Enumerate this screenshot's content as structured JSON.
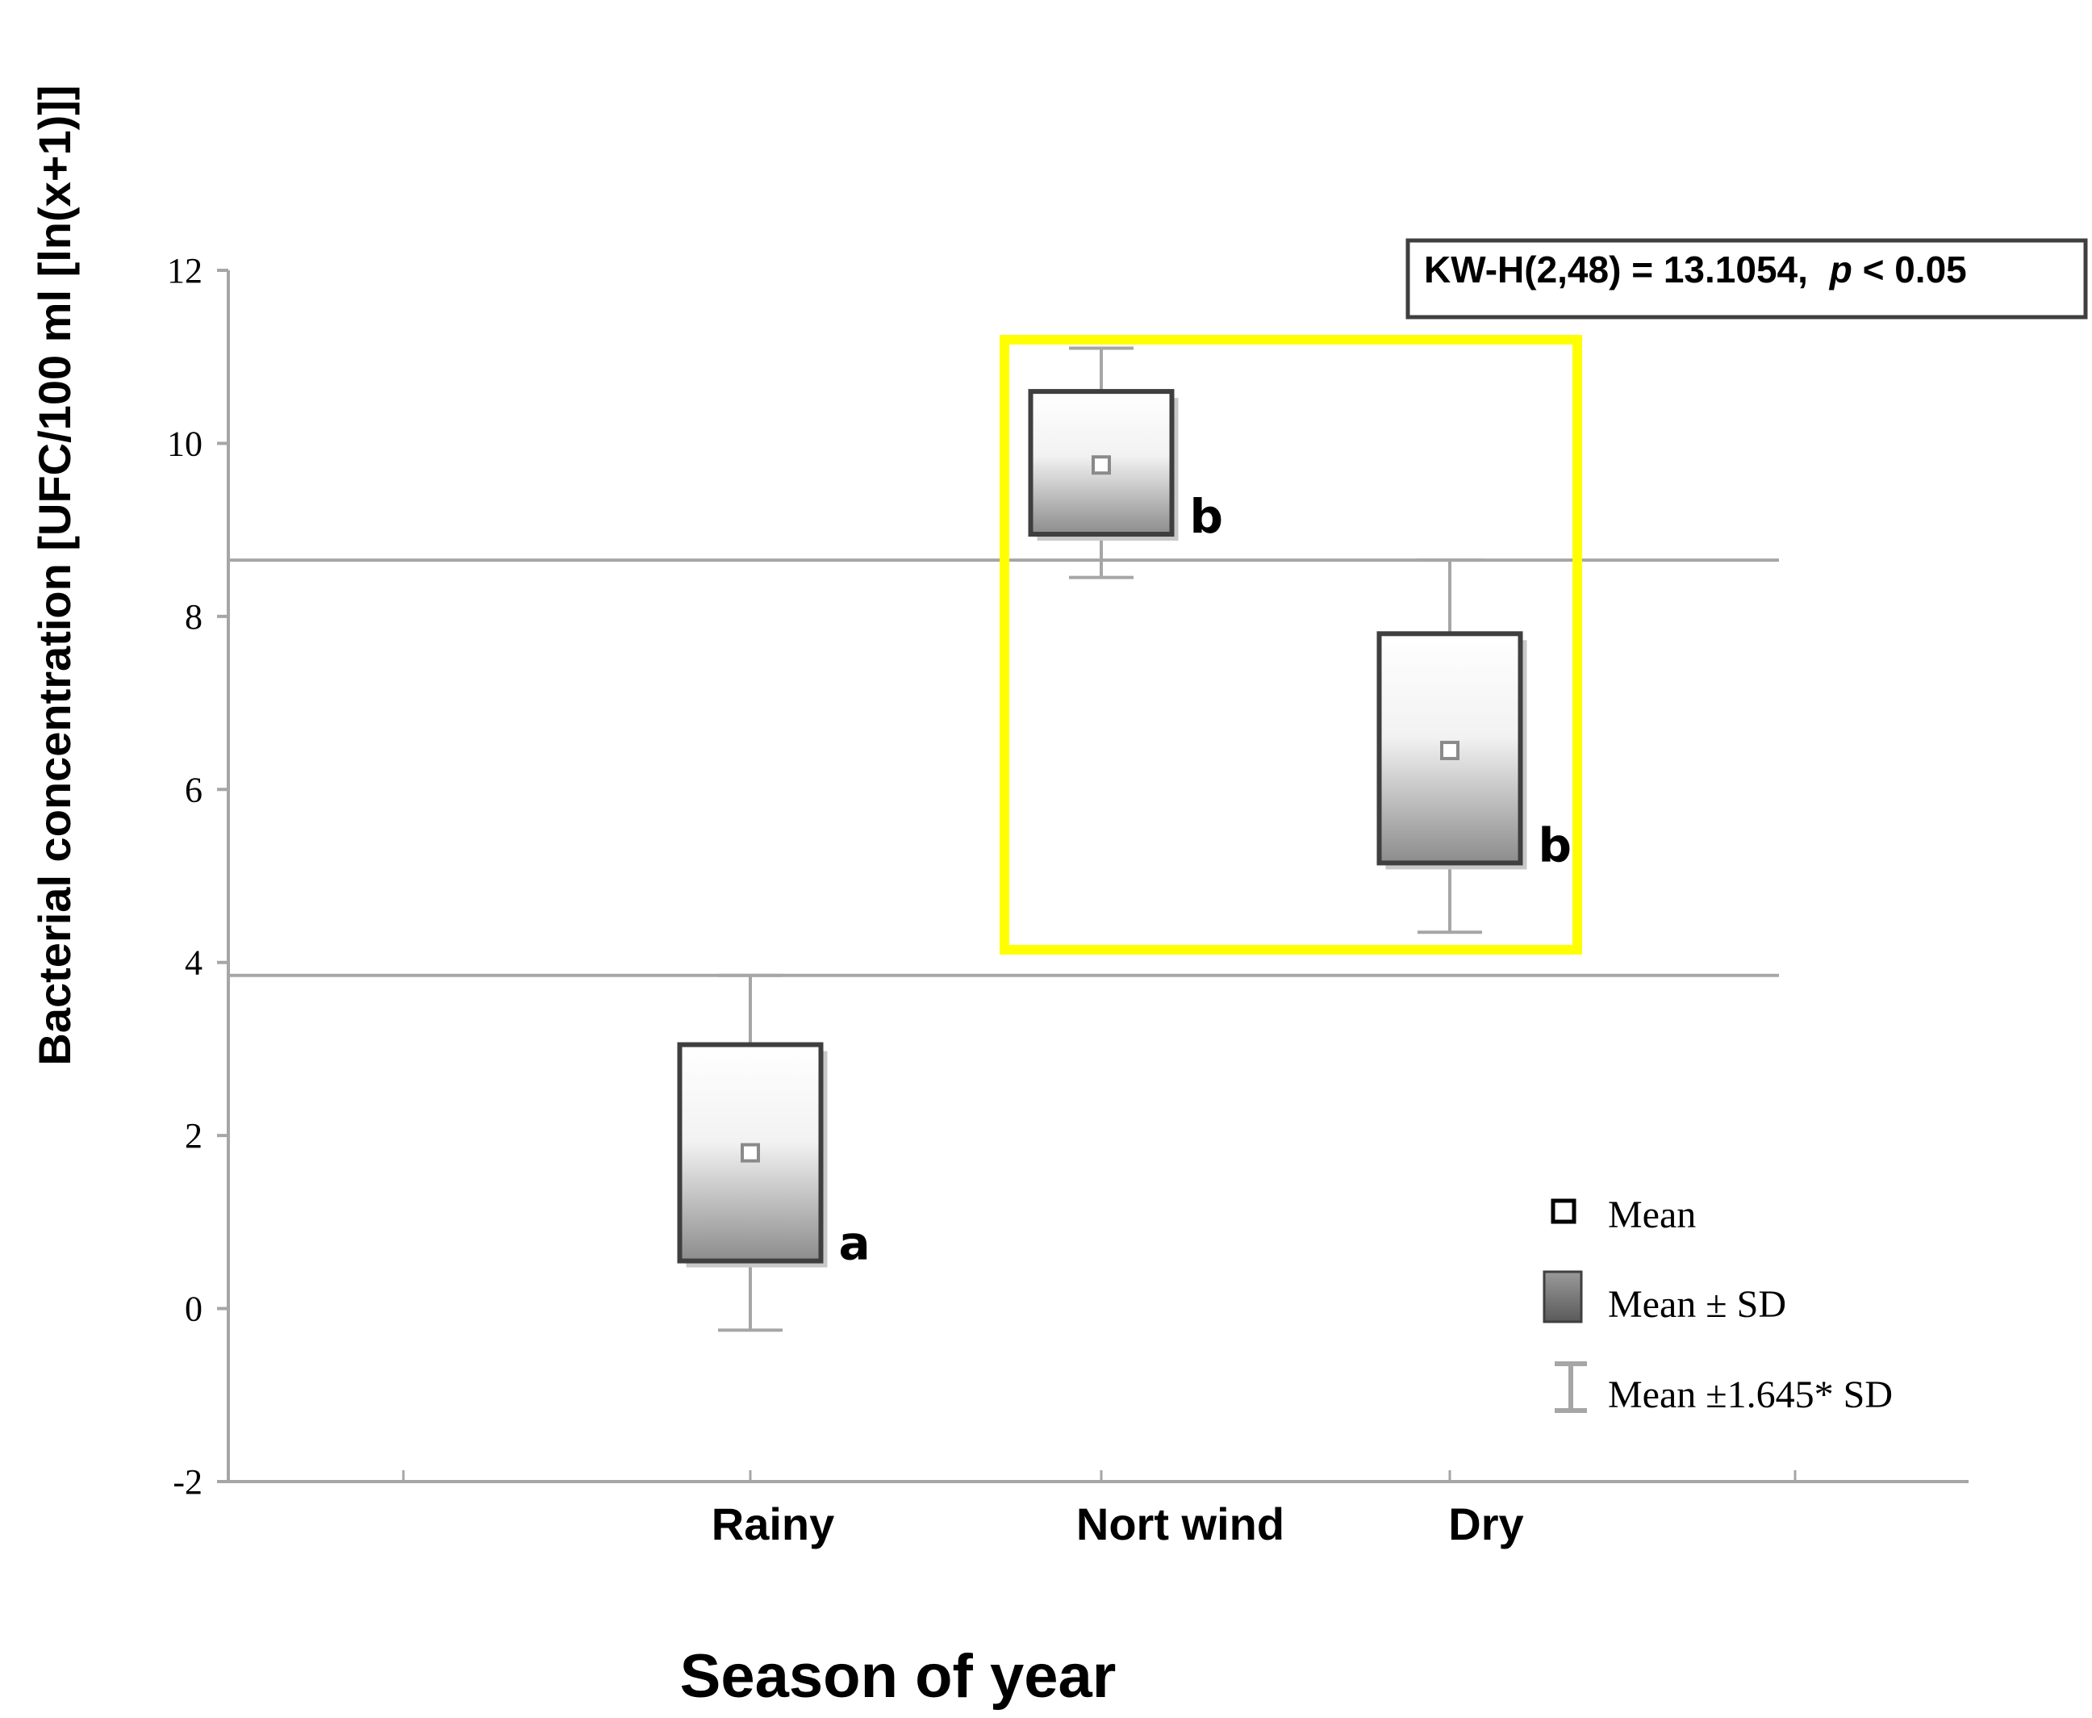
{
  "chart_data": {
    "type": "box",
    "title": "",
    "xlabel": "Season of year",
    "ylabel": "Bacterial concentration [UFC/100 ml [ln(x+1)]]",
    "ylim": [
      -2,
      12
    ],
    "yticks": [
      "-2",
      "0",
      "2",
      "4",
      "6",
      "8",
      "10",
      "12"
    ],
    "categories": [
      "Rainy",
      "Nort wind",
      "Dry"
    ],
    "series": [
      {
        "name": "Rainy",
        "mean": 1.8,
        "sd_low": 0.55,
        "sd_high": 3.05,
        "whisker_low": -0.25,
        "whisker_high": 3.85,
        "group_letter": "a"
      },
      {
        "name": "Nort wind",
        "mean": 9.75,
        "sd_low": 8.95,
        "sd_high": 10.6,
        "whisker_low": 8.45,
        "whisker_high": 11.1,
        "group_letter": "b"
      },
      {
        "name": "Dry",
        "mean": 6.45,
        "sd_low": 5.15,
        "sd_high": 7.8,
        "whisker_low": 4.35,
        "whisker_high": 8.65,
        "group_letter": "b"
      }
    ],
    "reference_lines": [
      8.65,
      3.85
    ],
    "legend": {
      "mean": "Mean",
      "sd": "Mean ± SD",
      "ci": "Mean ±1.645* SD"
    },
    "statistic": {
      "text": "KW-H(2,48)  = 13.1054,",
      "p_symbol": "p",
      "p_rest": " < 0.05"
    },
    "highlight_categories": [
      "Nort wind",
      "Dry"
    ],
    "colors": {
      "axis": "#a6a6a6",
      "box_border": "#3f3f3f",
      "box_top": "#ffffff",
      "box_bottom": "#8a8a8a",
      "highlight": "#ffff00"
    }
  }
}
